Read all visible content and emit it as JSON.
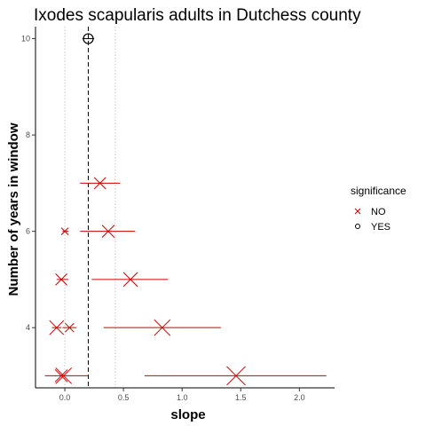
{
  "chart_data": {
    "type": "scatter",
    "title": "Ixodes scapularis adults in Dutchess county",
    "xlabel": "slope",
    "ylabel": "Number of years in window",
    "xlim": [
      -0.25,
      2.3
    ],
    "ylim": [
      2.75,
      10.25
    ],
    "x_ticks": [
      {
        "value": 0.0,
        "label": "0.0"
      },
      {
        "value": 0.5,
        "label": "0.5"
      },
      {
        "value": 1.0,
        "label": "1.0"
      },
      {
        "value": 1.5,
        "label": "1.5"
      },
      {
        "value": 2.0,
        "label": "2.0"
      }
    ],
    "y_ticks": [
      {
        "value": 4,
        "label": "4"
      },
      {
        "value": 6,
        "label": "6"
      },
      {
        "value": 8,
        "label": "8"
      },
      {
        "value": 10,
        "label": "10"
      }
    ],
    "reference_line": {
      "x": 0.2,
      "style": "dashed"
    },
    "grid_lines_x": [
      0.0,
      0.43
    ],
    "legend": {
      "title": "significance",
      "placement": "right",
      "entries": [
        {
          "label": "NO",
          "marker": "x",
          "color": "#cc0000"
        },
        {
          "label": "YES",
          "marker": "circle",
          "color": "#000000"
        }
      ]
    },
    "points": [
      {
        "y": 10,
        "x": 0.2,
        "lo": 0.15,
        "hi": 0.25,
        "sig": "YES",
        "size": 1.0
      },
      {
        "y": 7,
        "x": 0.3,
        "lo": 0.13,
        "hi": 0.47,
        "sig": "NO",
        "size": 0.8
      },
      {
        "y": 6,
        "x": 0.0,
        "lo": -0.02,
        "hi": 0.03,
        "sig": "NO",
        "size": 0.3
      },
      {
        "y": 6,
        "x": 0.37,
        "lo": 0.13,
        "hi": 0.6,
        "sig": "NO",
        "size": 0.9
      },
      {
        "y": 5,
        "x": -0.03,
        "lo": -0.07,
        "hi": 0.03,
        "sig": "NO",
        "size": 0.8
      },
      {
        "y": 5,
        "x": 0.56,
        "lo": 0.23,
        "hi": 0.88,
        "sig": "NO",
        "size": 1.1
      },
      {
        "y": 4,
        "x": -0.07,
        "lo": -0.11,
        "hi": -0.03,
        "sig": "NO",
        "size": 1.1
      },
      {
        "y": 4,
        "x": 0.04,
        "lo": -0.02,
        "hi": 0.1,
        "sig": "NO",
        "size": 0.5
      },
      {
        "y": 4,
        "x": 0.83,
        "lo": 0.33,
        "hi": 1.33,
        "sig": "NO",
        "size": 1.3
      },
      {
        "y": 3,
        "x": -0.03,
        "lo": -0.04,
        "hi": -0.02,
        "sig": "NO",
        "size": 0.9
      },
      {
        "y": 3,
        "x": -0.01,
        "lo": -0.17,
        "hi": 0.2,
        "sig": "NO",
        "size": 1.3
      },
      {
        "y": 3,
        "x": 1.46,
        "lo": 0.68,
        "hi": 2.23,
        "sig": "NO",
        "size": 1.6
      }
    ]
  }
}
